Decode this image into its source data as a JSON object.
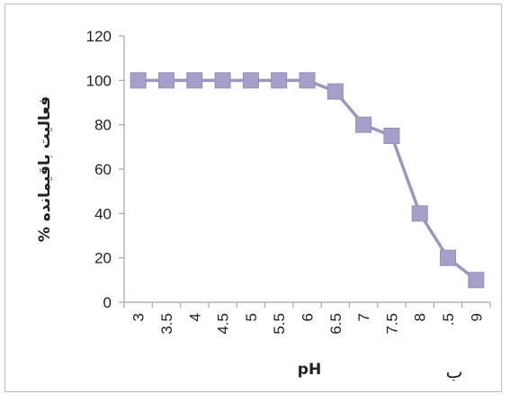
{
  "chart_data": {
    "type": "line",
    "categories": [
      "3",
      "3.5",
      "4",
      "4.5",
      "5",
      "5.5",
      "6",
      "6.5",
      "7",
      "7.5",
      "8",
      ".5",
      "9"
    ],
    "series": [
      {
        "values": [
          100,
          100,
          100,
          100,
          100,
          100,
          100,
          95,
          80,
          75,
          40,
          20,
          10
        ]
      }
    ],
    "xlabel": "pH",
    "ylabel": "فعالیت باقیمانده %",
    "ylim": [
      0,
      120
    ],
    "yticks": [
      0,
      20,
      40,
      60,
      80,
      100,
      120
    ],
    "grid": false,
    "legend": "none",
    "panel_label": "ب",
    "colors": {
      "series": "#9e95c2",
      "marker": "#a79ec9",
      "axis": "#a6a6a6",
      "text": "#222222"
    }
  }
}
